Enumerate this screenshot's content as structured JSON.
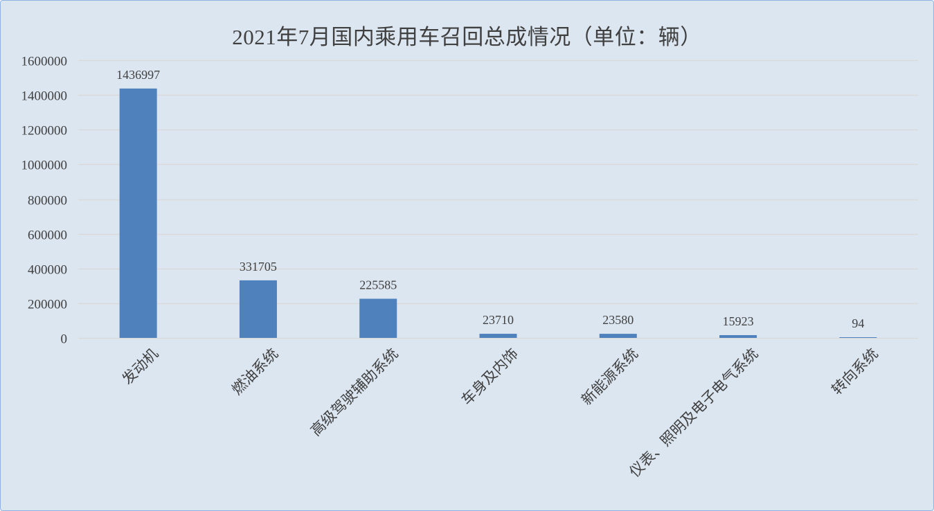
{
  "chart_data": {
    "type": "bar",
    "title": "2021年7月国内乘用车召回总成情况（单位：辆）",
    "categories": [
      "发动机",
      "燃油系统",
      "高级驾驶辅助系统",
      "车身及内饰",
      "新能源系统",
      "仪表、照明及电子电气系统",
      "转向系统"
    ],
    "values": [
      1436997,
      331705,
      225585,
      23710,
      23580,
      15923,
      94
    ],
    "data_labels": [
      "1436997",
      "331705",
      "225585",
      "23710",
      "23580",
      "15923",
      "94"
    ],
    "ylim": [
      0,
      1600000
    ],
    "yticks": [
      0,
      200000,
      400000,
      600000,
      800000,
      1000000,
      1200000,
      1400000,
      1600000
    ],
    "ytick_labels": [
      "0",
      "200000",
      "400000",
      "600000",
      "800000",
      "1000000",
      "1200000",
      "1400000",
      "1600000"
    ],
    "grid": true,
    "legend": "none",
    "bar_color": "#4f81bd",
    "grid_color": "#d9d9d9",
    "background_color": "#dce6f1",
    "border_color": "#8eb4e3"
  }
}
